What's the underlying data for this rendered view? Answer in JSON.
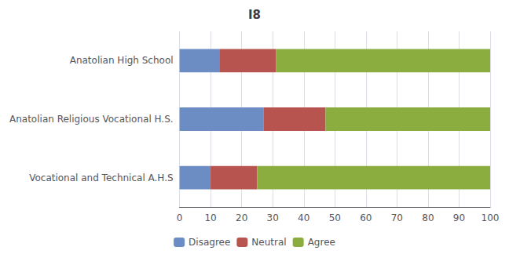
{
  "chart_data": {
    "type": "bar",
    "title": "I8",
    "orientation": "horizontal",
    "stacked": true,
    "categories": [
      "Anatolian High School",
      "Anatolian Religious Vocational H.S.",
      "Vocational and Technical A.H.S"
    ],
    "series": [
      {
        "name": "Disagree",
        "color": "#6B8DC4",
        "values": [
          13,
          27,
          10
        ]
      },
      {
        "name": "Neutral",
        "color": "#B85450",
        "values": [
          18,
          20,
          15
        ]
      },
      {
        "name": "Agree",
        "color": "#8BAD3F",
        "values": [
          69,
          53,
          75
        ]
      }
    ],
    "xlim": [
      0,
      100
    ],
    "xticks": [
      0,
      10,
      20,
      30,
      40,
      50,
      60,
      70,
      80,
      90,
      100
    ],
    "grid": true,
    "legend": "bottom"
  }
}
